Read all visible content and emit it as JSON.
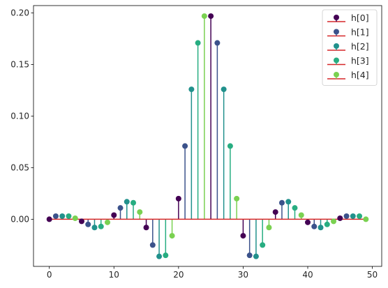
{
  "chart_data": {
    "type": "stem",
    "title": "",
    "xlabel": "",
    "ylabel": "",
    "xlim": [
      -2.45,
      51.45
    ],
    "ylim": [
      -0.0457,
      0.2072
    ],
    "xticks": [
      0,
      10,
      20,
      30,
      40,
      50
    ],
    "xtick_labels": [
      "0",
      "10",
      "20",
      "30",
      "40",
      "50"
    ],
    "yticks": [
      0.0,
      0.05,
      0.1,
      0.15,
      0.2
    ],
    "ytick_labels": [
      "0.00",
      "0.05",
      "0.10",
      "0.15",
      "0.20"
    ],
    "grid": false,
    "legend": "upper right",
    "baseline": {
      "value": 0,
      "color": "#d62728"
    },
    "series": [
      {
        "name": "h[0]",
        "color": "#440154",
        "x": [
          0,
          5,
          10,
          15,
          20,
          25,
          30,
          35,
          40,
          45
        ],
        "values": [
          0.0,
          -0.002,
          0.004,
          -0.008,
          0.02,
          0.197,
          -0.016,
          0.007,
          -0.003,
          0.001
        ]
      },
      {
        "name": "h[1]",
        "color": "#3b528b",
        "x": [
          1,
          6,
          11,
          16,
          21,
          26,
          31,
          36,
          41,
          46
        ],
        "values": [
          0.003,
          -0.005,
          0.011,
          -0.025,
          0.071,
          0.171,
          -0.035,
          0.016,
          -0.007,
          0.003
        ]
      },
      {
        "name": "h[2]",
        "color": "#21918c",
        "x": [
          2,
          7,
          12,
          17,
          22,
          27,
          32,
          37,
          42,
          47
        ],
        "values": [
          0.003,
          -0.008,
          0.017,
          -0.036,
          0.126,
          0.126,
          -0.036,
          0.017,
          -0.008,
          0.003
        ]
      },
      {
        "name": "h[3]",
        "color": "#27ad81",
        "x": [
          3,
          8,
          13,
          18,
          23,
          28,
          33,
          38,
          43,
          48
        ],
        "values": [
          0.003,
          -0.007,
          0.016,
          -0.035,
          0.171,
          0.071,
          -0.025,
          0.011,
          -0.005,
          0.003
        ]
      },
      {
        "name": "h[4]",
        "color": "#7ad151",
        "x": [
          4,
          9,
          14,
          19,
          24,
          29,
          34,
          39,
          44,
          49
        ],
        "values": [
          0.001,
          -0.003,
          0.007,
          -0.016,
          0.197,
          0.02,
          -0.008,
          0.004,
          -0.002,
          0.0
        ]
      }
    ]
  }
}
